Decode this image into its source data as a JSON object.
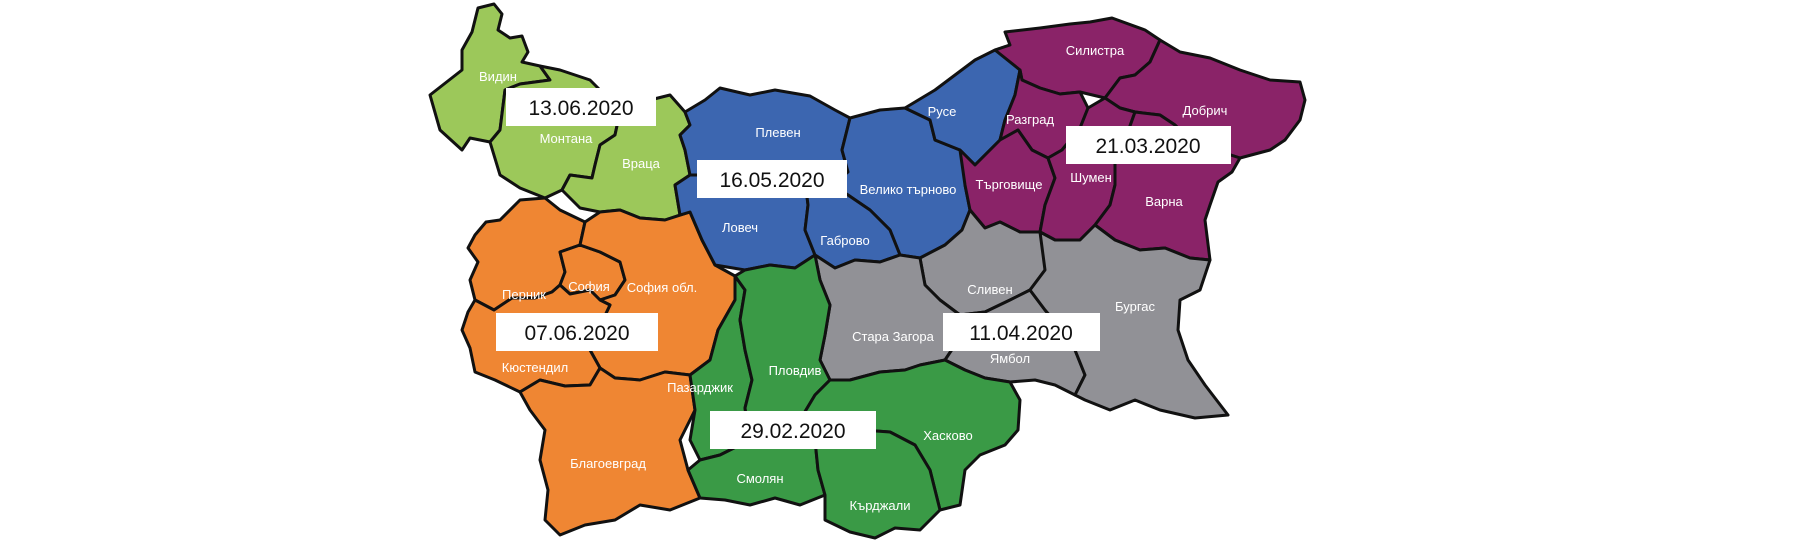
{
  "colors": {
    "northwest": "#9cc85a",
    "north_central": "#3c66b0",
    "northeast": "#8a2368",
    "southeast": "#919196",
    "south_central": "#3a9a46",
    "southwest": "#ef8633",
    "border": "#111111",
    "label": "#ffffff"
  },
  "zones": [
    {
      "id": "northwest",
      "date": "13.06.2020",
      "regions": [
        "Видин",
        "Монтана",
        "Враца"
      ]
    },
    {
      "id": "north_central",
      "date": "16.05.2020",
      "regions": [
        "Плевен",
        "Ловеч",
        "Велико търново",
        "Габрово",
        "Русе"
      ]
    },
    {
      "id": "northeast",
      "date": "21.03.2020",
      "regions": [
        "Силистра",
        "Разград",
        "Добрич",
        "Търговище",
        "Шумен",
        "Варна"
      ]
    },
    {
      "id": "southwest",
      "date": "07.06.2020",
      "regions": [
        "Перник",
        "София",
        "София обл.",
        "Кюстендил",
        "Благоевград"
      ]
    },
    {
      "id": "southeast",
      "date": "11.04.2020",
      "regions": [
        "Сливен",
        "Стара Загора",
        "Ямбол",
        "Бургас"
      ]
    },
    {
      "id": "south_central",
      "date": "29.02.2020",
      "regions": [
        "Пазарджик",
        "Пловдив",
        "Смолян",
        "Хасково",
        "Кърджали"
      ]
    }
  ]
}
